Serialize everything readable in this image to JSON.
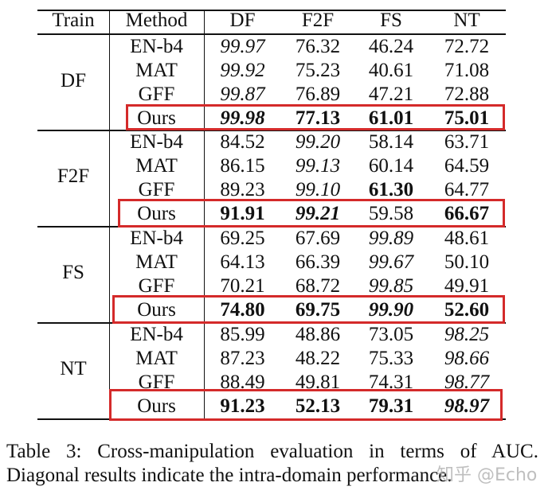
{
  "table": {
    "headers": [
      "Train",
      "Method",
      "DF",
      "F2F",
      "FS",
      "NT"
    ],
    "groups": [
      {
        "train": "DF",
        "rows": [
          {
            "method": "EN-b4",
            "values": [
              "99.97",
              "76.32",
              "46.24",
              "72.72"
            ],
            "style": [
              "it",
              "",
              "",
              ""
            ]
          },
          {
            "method": "MAT",
            "values": [
              "99.92",
              "75.23",
              "40.61",
              "71.08"
            ],
            "style": [
              "it",
              "",
              "",
              ""
            ]
          },
          {
            "method": "GFF",
            "values": [
              "99.87",
              "76.89",
              "47.21",
              "72.88"
            ],
            "style": [
              "it",
              "",
              "",
              ""
            ]
          },
          {
            "method": "Ours",
            "values": [
              "99.98",
              "77.13",
              "61.01",
              "75.01"
            ],
            "style": [
              "it bd",
              "bd",
              "bd",
              "bd"
            ],
            "highlighted": true
          }
        ]
      },
      {
        "train": "F2F",
        "rows": [
          {
            "method": "EN-b4",
            "values": [
              "84.52",
              "99.20",
              "58.14",
              "63.71"
            ],
            "style": [
              "",
              "it",
              "",
              ""
            ]
          },
          {
            "method": "MAT",
            "values": [
              "86.15",
              "99.13",
              "60.14",
              "64.59"
            ],
            "style": [
              "",
              "it",
              "",
              ""
            ]
          },
          {
            "method": "GFF",
            "values": [
              "89.23",
              "99.10",
              "61.30",
              "64.77"
            ],
            "style": [
              "",
              "it",
              "bd",
              ""
            ]
          },
          {
            "method": "Ours",
            "values": [
              "91.91",
              "99.21",
              "59.58",
              "66.67"
            ],
            "style": [
              "bd",
              "it bd",
              "",
              "bd"
            ],
            "highlighted": true
          }
        ]
      },
      {
        "train": "FS",
        "rows": [
          {
            "method": "EN-b4",
            "values": [
              "69.25",
              "67.69",
              "99.89",
              "48.61"
            ],
            "style": [
              "",
              "",
              "it",
              ""
            ]
          },
          {
            "method": "MAT",
            "values": [
              "64.13",
              "66.39",
              "99.67",
              "50.10"
            ],
            "style": [
              "",
              "",
              "it",
              ""
            ]
          },
          {
            "method": "GFF",
            "values": [
              "70.21",
              "68.72",
              "99.85",
              "49.91"
            ],
            "style": [
              "",
              "",
              "it",
              ""
            ]
          },
          {
            "method": "Ours",
            "values": [
              "74.80",
              "69.75",
              "99.90",
              "52.60"
            ],
            "style": [
              "bd",
              "bd",
              "it bd",
              "bd"
            ],
            "highlighted": true
          }
        ]
      },
      {
        "train": "NT",
        "rows": [
          {
            "method": "EN-b4",
            "values": [
              "85.99",
              "48.86",
              "73.05",
              "98.25"
            ],
            "style": [
              "",
              "",
              "",
              "it"
            ]
          },
          {
            "method": "MAT",
            "values": [
              "87.23",
              "48.22",
              "75.33",
              "98.66"
            ],
            "style": [
              "",
              "",
              "",
              "it"
            ]
          },
          {
            "method": "GFF",
            "values": [
              "88.49",
              "49.81",
              "74.31",
              "98.77"
            ],
            "style": [
              "",
              "",
              "",
              "it"
            ]
          },
          {
            "method": "Ours",
            "values": [
              "91.23",
              "52.13",
              "79.31",
              "98.97"
            ],
            "style": [
              "bd",
              "bd",
              "bd",
              "it bd"
            ],
            "highlighted": true
          }
        ]
      }
    ],
    "highlight_color": "#d42a2a"
  },
  "caption": {
    "line1": "Table 3: Cross-manipulation evaluation in terms of AUC.",
    "line2": "Diagonal results indicate the intra-domain performance."
  },
  "watermark": "知乎 @Echo"
}
